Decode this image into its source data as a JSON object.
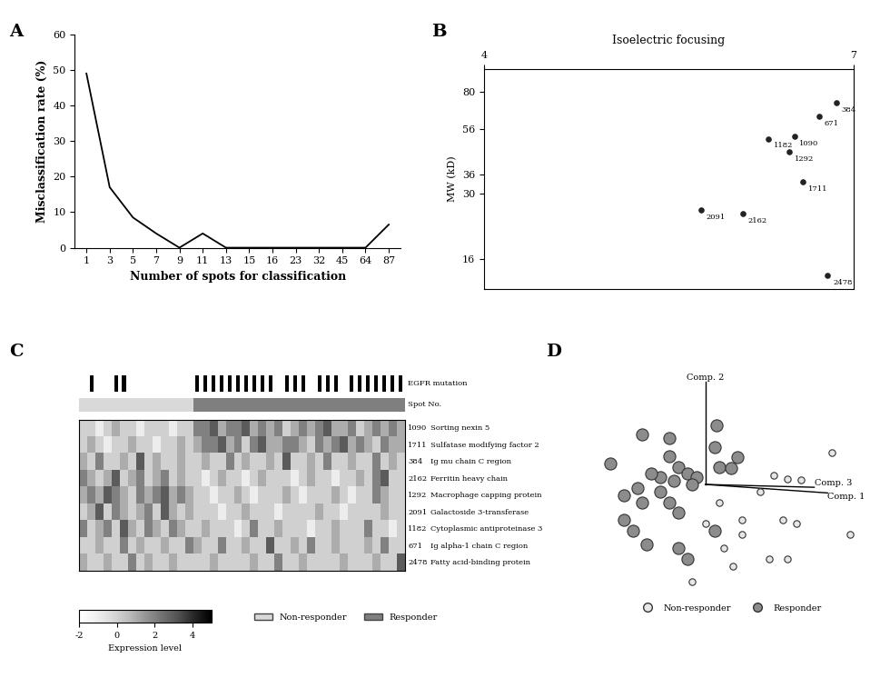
{
  "chart_data": [
    {
      "panel": "A",
      "type": "line",
      "x_label": "Number of spots for classification",
      "y_label": "Misclassification rate (%)",
      "categories": [
        "1",
        "3",
        "5",
        "7",
        "9",
        "11",
        "13",
        "15",
        "16",
        "23",
        "32",
        "45",
        "64",
        "87"
      ],
      "values": [
        49,
        17,
        8.5,
        4,
        0,
        4,
        0,
        0,
        0,
        0,
        0,
        0,
        0,
        6.5
      ],
      "color": "#000000",
      "ylim": [
        0,
        60
      ],
      "yticks": [
        0,
        10,
        20,
        30,
        40,
        50,
        60
      ]
    },
    {
      "panel": "B",
      "type": "scatter",
      "title": "Isoelectric focusing",
      "y_label": "MW (kD)",
      "x": [
        6.86,
        6.72,
        6.52,
        6.31,
        6.48,
        6.59,
        5.76,
        6.1,
        6.79
      ],
      "y": [
        72,
        63,
        52,
        51,
        45,
        33.6,
        25.6,
        24.7,
        13.7
      ],
      "labels": [
        "384",
        "671",
        "1090",
        "1182",
        "1292",
        "1711",
        "2091",
        "2162",
        "2478"
      ],
      "data_labels": true,
      "log": "y",
      "color": "#222222",
      "xlim": [
        4,
        7
      ],
      "xticks": [
        4,
        7
      ],
      "ylim": [
        12,
        100
      ],
      "yticks": [
        16,
        30,
        36,
        56,
        80
      ]
    },
    {
      "panel": "C",
      "type": "heatmap",
      "row_header": "Spot No.",
      "mutation_label": "EGFR mutation",
      "rows": [
        {
          "spot": "1090",
          "protein": "Sorting nexin 5",
          "values": [
            0,
            0,
            -1,
            0,
            1,
            0,
            0,
            -1,
            0,
            0,
            0,
            -1,
            0,
            0,
            2,
            2,
            3,
            1,
            2,
            2,
            3,
            1,
            2,
            1,
            2,
            0,
            1,
            2,
            1,
            2,
            3,
            1,
            1,
            2,
            0,
            1,
            2,
            1,
            2,
            1
          ]
        },
        {
          "spot": "1711",
          "protein": "Sulfatase modifying factor 2",
          "values": [
            0,
            1,
            0,
            -1,
            0,
            0,
            1,
            0,
            0,
            -1,
            0,
            0,
            1,
            0,
            1,
            2,
            2,
            3,
            1,
            2,
            0,
            2,
            3,
            1,
            1,
            2,
            2,
            1,
            0,
            2,
            1,
            2,
            3,
            1,
            2,
            1,
            0,
            2,
            1,
            1
          ]
        },
        {
          "spot": "384",
          "protein": "Ig mu chain C region",
          "values": [
            1,
            0,
            2,
            0,
            0,
            1,
            0,
            3,
            0,
            1,
            0,
            0,
            1,
            0,
            0,
            1,
            0,
            0,
            2,
            0,
            1,
            0,
            0,
            1,
            0,
            3,
            0,
            0,
            1,
            0,
            2,
            0,
            0,
            1,
            0,
            0,
            2,
            0,
            1,
            0
          ]
        },
        {
          "spot": "2162",
          "protein": "Ferritin heavy chain",
          "values": [
            2,
            1,
            0,
            1,
            3,
            0,
            1,
            2,
            0,
            1,
            2,
            0,
            1,
            0,
            0,
            -1,
            0,
            1,
            0,
            0,
            -1,
            0,
            1,
            0,
            0,
            0,
            -1,
            0,
            1,
            0,
            0,
            -1,
            0,
            0,
            1,
            0,
            2,
            3,
            0,
            0
          ]
        },
        {
          "spot": "1292",
          "protein": "Macrophage capping protein",
          "values": [
            1,
            2,
            1,
            3,
            2,
            1,
            0,
            2,
            1,
            2,
            3,
            1,
            2,
            1,
            0,
            0,
            -1,
            0,
            0,
            1,
            0,
            -1,
            0,
            0,
            0,
            1,
            0,
            -1,
            0,
            0,
            0,
            1,
            0,
            -1,
            0,
            0,
            2,
            1,
            0,
            0
          ]
        },
        {
          "spot": "2091",
          "protein": "Galactoside 3-transferase",
          "values": [
            0,
            1,
            3,
            0,
            2,
            1,
            0,
            1,
            2,
            0,
            3,
            1,
            0,
            1,
            0,
            0,
            0,
            -1,
            0,
            0,
            1,
            0,
            0,
            0,
            -1,
            0,
            0,
            0,
            0,
            1,
            0,
            0,
            -1,
            0,
            0,
            0,
            0,
            1,
            0,
            0
          ]
        },
        {
          "spot": "1182",
          "protein": "Cytoplasmic antiproteinase 3",
          "values": [
            2,
            0,
            1,
            2,
            0,
            3,
            1,
            0,
            2,
            1,
            0,
            2,
            1,
            0,
            0,
            1,
            0,
            0,
            0,
            -1,
            0,
            2,
            0,
            0,
            1,
            0,
            0,
            0,
            -1,
            0,
            0,
            1,
            0,
            0,
            0,
            2,
            0,
            0,
            -1,
            0
          ]
        },
        {
          "spot": "671",
          "protein": "Ig alpha-1 chain C region",
          "values": [
            0,
            0,
            1,
            0,
            0,
            2,
            0,
            1,
            0,
            0,
            1,
            0,
            0,
            2,
            1,
            0,
            0,
            2,
            0,
            0,
            1,
            0,
            0,
            3,
            0,
            0,
            1,
            0,
            2,
            0,
            0,
            1,
            0,
            0,
            0,
            1,
            0,
            2,
            0,
            0
          ]
        },
        {
          "spot": "2478",
          "protein": "Fatty acid-binding protein",
          "values": [
            1,
            0,
            0,
            1,
            0,
            0,
            2,
            0,
            1,
            0,
            0,
            1,
            0,
            0,
            0,
            0,
            1,
            0,
            0,
            0,
            0,
            1,
            0,
            0,
            2,
            0,
            0,
            1,
            0,
            0,
            0,
            0,
            1,
            0,
            0,
            0,
            1,
            0,
            0,
            3
          ]
        }
      ],
      "groups": [
        "Non-responder",
        "Non-responder",
        "Non-responder",
        "Non-responder",
        "Non-responder",
        "Non-responder",
        "Non-responder",
        "Non-responder",
        "Non-responder",
        "Non-responder",
        "Non-responder",
        "Non-responder",
        "Non-responder",
        "Non-responder",
        "Responder",
        "Responder",
        "Responder",
        "Responder",
        "Responder",
        "Responder",
        "Responder",
        "Responder",
        "Responder",
        "Responder",
        "Responder",
        "Responder",
        "Responder",
        "Responder",
        "Responder",
        "Responder",
        "Responder",
        "Responder",
        "Responder",
        "Responder",
        "Responder",
        "Responder",
        "Responder",
        "Responder",
        "Responder",
        "Responder"
      ],
      "egfr_mutation": [
        0,
        1,
        0,
        0,
        1,
        1,
        0,
        0,
        0,
        0,
        0,
        0,
        0,
        0,
        1,
        1,
        1,
        1,
        1,
        1,
        1,
        1,
        1,
        1,
        0,
        1,
        1,
        1,
        0,
        1,
        1,
        1,
        0,
        1,
        1,
        1,
        1,
        1,
        1,
        1
      ],
      "series": [
        {
          "name": "Non-responder",
          "color": "#d9d9d9"
        },
        {
          "name": "Responder",
          "color": "#7f7f7f"
        }
      ],
      "legend": "lower left",
      "colorbar": {
        "label": "Expression level",
        "lim": [
          -2,
          5
        ],
        "ticks": [
          -2,
          0,
          2,
          4
        ]
      }
    },
    {
      "panel": "D",
      "type": "scatter",
      "axis_labels": [
        "Comp. 1",
        "Comp. 2",
        "Comp. 3"
      ],
      "tick_labels": false,
      "legend": "upper center",
      "series": [
        {
          "name": "Non-responder",
          "color": "#e6e6e6",
          "marker": "o",
          "x": [
            1.4,
            0.75,
            0.9,
            1.05,
            0.6,
            0.4,
            0.85,
            1.0,
            0.2,
            0.4,
            0.7,
            0.9,
            0.3,
            1.6,
            -0.15,
            0.15,
            0.0
          ],
          "y": [
            0.45,
            0.13,
            0.08,
            0.07,
            -0.1,
            -0.5,
            -0.5,
            -0.55,
            -0.9,
            -0.7,
            -1.05,
            -1.05,
            -1.15,
            -0.7,
            -1.37,
            -0.25,
            -0.55
          ]
        },
        {
          "name": "Responder",
          "color": "#8c8c8c",
          "marker": "o",
          "x": [
            0.12,
            0.1,
            0.35,
            -0.4,
            -0.7,
            -0.4,
            -0.3,
            -0.2,
            -0.1,
            -0.15,
            -0.35,
            -0.5,
            -0.6,
            -0.75,
            -0.9,
            -0.7,
            -0.4,
            -0.3,
            -0.9,
            -0.8,
            -0.65,
            -0.3,
            0.1,
            -0.2,
            0.15,
            0.28,
            -1.05,
            -0.5
          ],
          "y": [
            0.83,
            0.52,
            0.38,
            0.65,
            0.7,
            0.4,
            0.25,
            0.15,
            0.1,
            0.0,
            0.05,
            0.1,
            0.15,
            -0.05,
            -0.15,
            -0.25,
            -0.25,
            -0.4,
            -0.5,
            -0.65,
            -0.85,
            -0.9,
            -0.65,
            -1.05,
            0.25,
            0.23,
            0.3,
            -0.1
          ]
        }
      ]
    }
  ]
}
